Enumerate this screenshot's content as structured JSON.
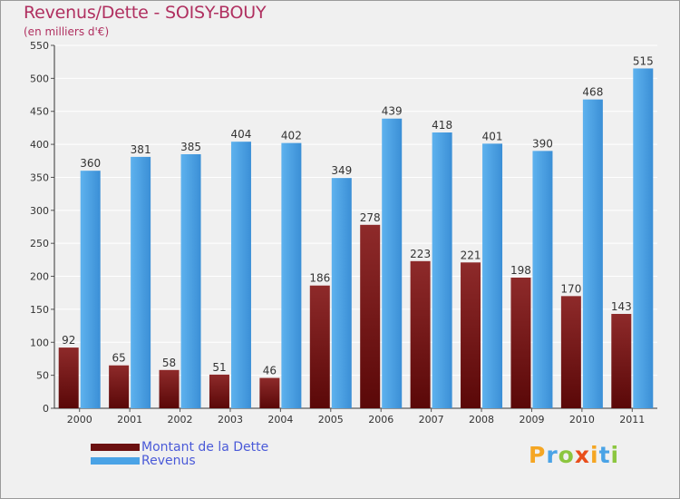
{
  "title": "Revenus/Dette - SOISY-BOUY",
  "subtitle": "(en milliers d'€)",
  "chart_data": {
    "type": "bar",
    "categories": [
      "2000",
      "2001",
      "2002",
      "2003",
      "2004",
      "2005",
      "2006",
      "2007",
      "2008",
      "2009",
      "2010",
      "2011"
    ],
    "series": [
      {
        "name": "Montant de la Dette",
        "values": [
          92,
          65,
          58,
          51,
          46,
          186,
          278,
          223,
          221,
          198,
          170,
          143
        ],
        "color": "#7a1a1a"
      },
      {
        "name": "Revenus",
        "values": [
          360,
          381,
          385,
          404,
          402,
          349,
          439,
          418,
          401,
          390,
          468,
          515
        ],
        "color": "#4aa3e6"
      }
    ],
    "ylim": [
      0,
      550
    ],
    "yticks": [
      0,
      50,
      100,
      150,
      200,
      250,
      300,
      350,
      400,
      450,
      500,
      550
    ],
    "grid": true,
    "legend_position": "bottom-left"
  },
  "legend": [
    {
      "label": "Montant de la Dette",
      "color": "#7a1a1a"
    },
    {
      "label": "Revenus",
      "color": "#4aa3e6"
    }
  ],
  "logo": {
    "letters": [
      "P",
      "r",
      "o",
      "x",
      "i",
      "t",
      "i"
    ],
    "colors": [
      "#f5a623",
      "#4aa3e6",
      "#8cc63f",
      "#e94e1b",
      "#f5a623",
      "#4aa3e6",
      "#8cc63f"
    ]
  }
}
